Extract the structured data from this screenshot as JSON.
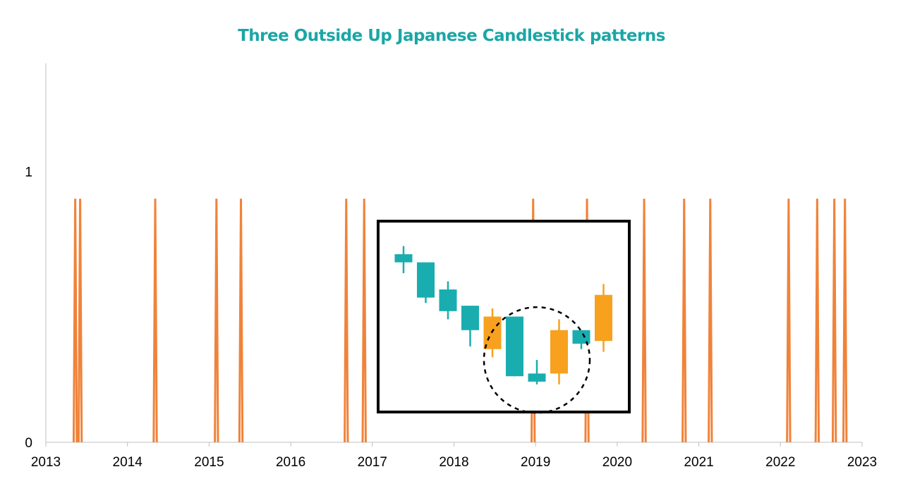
{
  "chart_data": {
    "type": "line",
    "title": "Three Outside Up Japanese Candlestick patterns",
    "xlabel": "",
    "ylabel": "",
    "x_ticks": [
      "2013",
      "2014",
      "2015",
      "2016",
      "2017",
      "2018",
      "2019",
      "2020",
      "2021",
      "2022",
      "2023"
    ],
    "y_ticks": [
      "0",
      "1"
    ],
    "xlim": [
      2013,
      2023
    ],
    "ylim": [
      0,
      1.4
    ],
    "grid": false,
    "series": [
      {
        "signal_dates": [
          2013.36,
          2013.42,
          2014.34,
          2015.09,
          2015.39,
          2016.68,
          2016.9,
          2018.97,
          2019.63,
          2020.33,
          2020.82,
          2021.14,
          2022.1,
          2022.45,
          2022.66,
          2022.79
        ],
        "signal_value": 0.9
      }
    ],
    "inset_illustration": {
      "candles": [
        {
          "dir": "down",
          "open": 0.83,
          "close": 0.8,
          "high": 0.86,
          "low": 0.76
        },
        {
          "dir": "down",
          "open": 0.8,
          "close": 0.67,
          "high": 0.8,
          "low": 0.65
        },
        {
          "dir": "down",
          "open": 0.7,
          "close": 0.62,
          "high": 0.73,
          "low": 0.59
        },
        {
          "dir": "down",
          "open": 0.64,
          "close": 0.55,
          "high": 0.64,
          "low": 0.49
        },
        {
          "dir": "up",
          "open": 0.48,
          "close": 0.6,
          "high": 0.63,
          "low": 0.45
        },
        {
          "dir": "down",
          "open": 0.6,
          "close": 0.38,
          "high": 0.6,
          "low": 0.38
        },
        {
          "dir": "down",
          "open": 0.39,
          "close": 0.36,
          "high": 0.44,
          "low": 0.35
        },
        {
          "dir": "up",
          "open": 0.39,
          "close": 0.55,
          "high": 0.59,
          "low": 0.35
        },
        {
          "dir": "down",
          "open": 0.55,
          "close": 0.5,
          "high": 0.55,
          "low": 0.48
        },
        {
          "dir": "up",
          "open": 0.51,
          "close": 0.68,
          "high": 0.72,
          "low": 0.47
        }
      ]
    },
    "colors": {
      "title": "#1aa6a6",
      "signal_line": "#f0833a",
      "bear_candle": "#1aadb0",
      "bull_candle": "#f7a11e",
      "axis": "#bfbfbf",
      "inset_border": "#000000",
      "text": "#000000"
    }
  }
}
